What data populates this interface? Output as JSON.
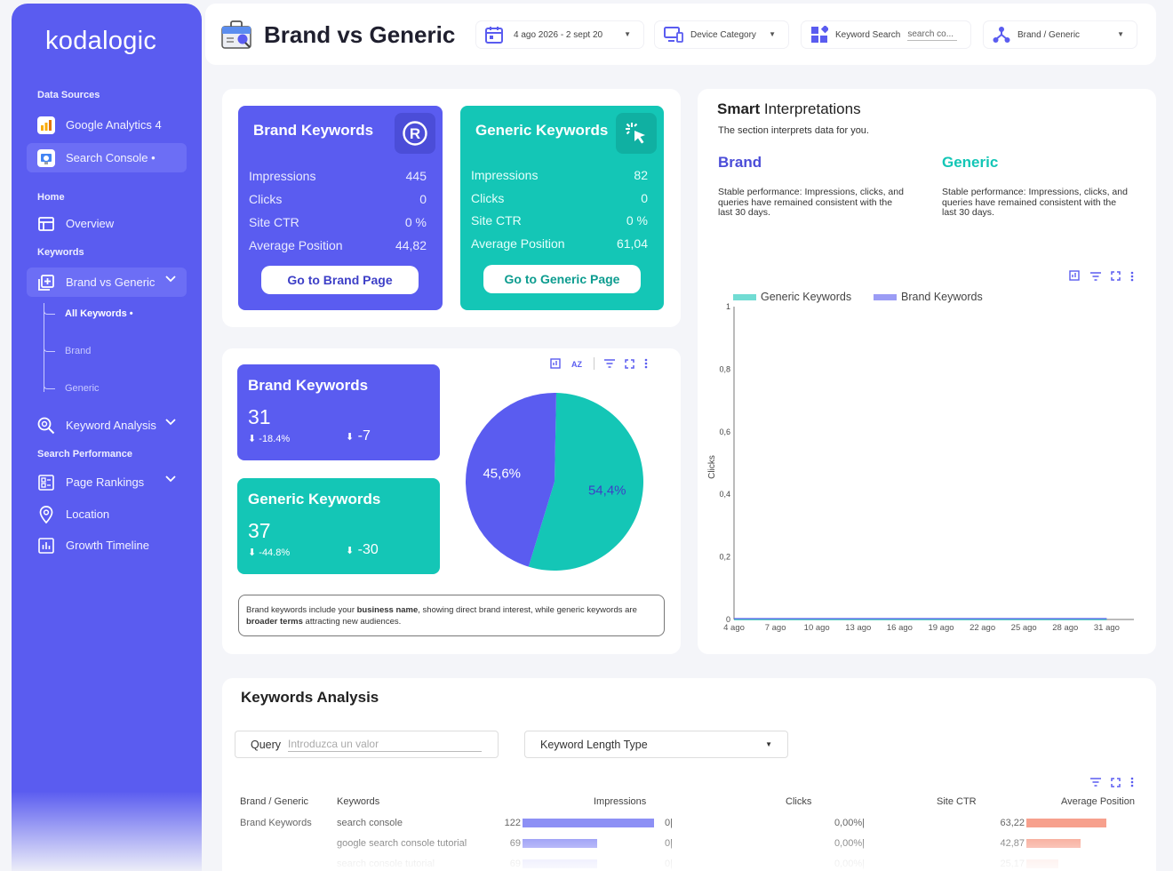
{
  "sidebar": {
    "logo": "kodalogic",
    "sections": {
      "data_sources": "Data Sources",
      "home": "Home",
      "keywords": "Keywords",
      "search_performance": "Search Performance"
    },
    "items": {
      "google_analytics": "Google Analytics 4",
      "search_console": "Search Console •",
      "overview": "Overview",
      "brand_vs_generic": "Brand vs Generic",
      "all_keywords": "All Keywords •",
      "brand": "Brand",
      "generic": "Generic",
      "keyword_analysis": "Keyword Analysis",
      "page_rankings": "Page Rankings",
      "location": "Location",
      "growth_timeline": "Growth Timeline"
    }
  },
  "header": {
    "title": "Brand vs Generic",
    "date_range": "4 ago 2026 - 2 sept 20",
    "device_category": "Device Category",
    "keyword_search_label": "Keyword Search",
    "keyword_search_placeholder": "search co...",
    "brand_generic": "Brand / Generic"
  },
  "brand_kpi": {
    "title": "Brand Keywords",
    "rows": [
      {
        "label": "Impressions",
        "value": "445"
      },
      {
        "label": "Clicks",
        "value": "0"
      },
      {
        "label": "Site CTR",
        "value": "0 %"
      },
      {
        "label": "Average Position",
        "value": "44,82"
      }
    ],
    "button": "Go to Brand Page"
  },
  "generic_kpi": {
    "title": "Generic Keywords",
    "rows": [
      {
        "label": "Impressions",
        "value": "82"
      },
      {
        "label": "Clicks",
        "value": "0"
      },
      {
        "label": "Site CTR",
        "value": "0 %"
      },
      {
        "label": "Average Position",
        "value": "61,04"
      }
    ],
    "button": "Go to Generic Page"
  },
  "brand_card": {
    "title": "Brand Keywords",
    "count": "31",
    "pct": "-18.4%",
    "delta": "-7"
  },
  "generic_card": {
    "title": "Generic Keywords",
    "count": "37",
    "pct": "-44.8%",
    "delta": "-30"
  },
  "note": {
    "part1": "Brand keywords include your ",
    "bold1": "business name",
    "part2": ", showing direct brand interest, while generic keywords are ",
    "bold2": "broader terms",
    "part3": " attracting new audiences."
  },
  "smart": {
    "title_bold": "Smart",
    "title_rest": " Interpretations",
    "subtitle": "The section interprets data for you.",
    "brand_head": "Brand",
    "brand_text": "Stable performance: Impressions, clicks, and queries have remained consistent with the last 30 days.",
    "generic_head": "Generic",
    "generic_text": "Stable performance: Impressions, clicks, and queries have remained consistent with the last 30 days."
  },
  "colors": {
    "brand": "#5a5cf0",
    "generic": "#14c6b6",
    "position_bar": "#f7a08d",
    "impressions_bar": "#8d90f5"
  },
  "chart_data": [
    {
      "type": "pie",
      "labels": [
        "Generic Keywords",
        "Brand Keywords"
      ],
      "values": [
        54.4,
        45.6
      ],
      "value_labels": [
        "54,4%",
        "45,6%"
      ]
    },
    {
      "type": "line",
      "ylabel": "Clicks",
      "ylim": [
        0,
        1
      ],
      "y_ticks": [
        "0",
        "0,2",
        "0,4",
        "0,6",
        "0,8",
        "1"
      ],
      "categories": [
        "4 ago",
        "7 ago",
        "10 ago",
        "13 ago",
        "16 ago",
        "19 ago",
        "22 ago",
        "25 ago",
        "28 ago",
        "31 ago"
      ],
      "series": [
        {
          "name": "Generic Keywords",
          "values": [
            0,
            0,
            0,
            0,
            0,
            0,
            0,
            0,
            0,
            0
          ]
        },
        {
          "name": "Brand Keywords",
          "values": [
            0,
            0,
            0,
            0,
            0,
            0,
            0,
            0,
            0,
            0
          ]
        }
      ],
      "legend_placement": "top"
    }
  ],
  "analysis": {
    "title": "Keywords Analysis",
    "query_label": "Query",
    "query_placeholder": "Introduzca un valor",
    "length_type": "Keyword Length Type",
    "columns": [
      "Brand / Generic",
      "Keywords",
      "Impressions",
      "Clicks",
      "Site CTR",
      "Average Position"
    ],
    "rows": [
      {
        "type": "Brand Keywords",
        "keyword": "search console",
        "impressions": "122",
        "imp_value": 122,
        "clicks": "0",
        "ctr": "0,00%",
        "position": "63,22",
        "pos_value": 63.22
      },
      {
        "type": "",
        "keyword": "google search console tutorial",
        "impressions": "69",
        "imp_value": 69,
        "clicks": "0",
        "ctr": "0,00%",
        "position": "42,87",
        "pos_value": 42.87
      },
      {
        "type": "",
        "keyword": "search console tutorial",
        "impressions": "69",
        "imp_value": 69,
        "clicks": "0",
        "ctr": "0,00%",
        "position": "25,17",
        "pos_value": 25.17
      }
    ]
  }
}
